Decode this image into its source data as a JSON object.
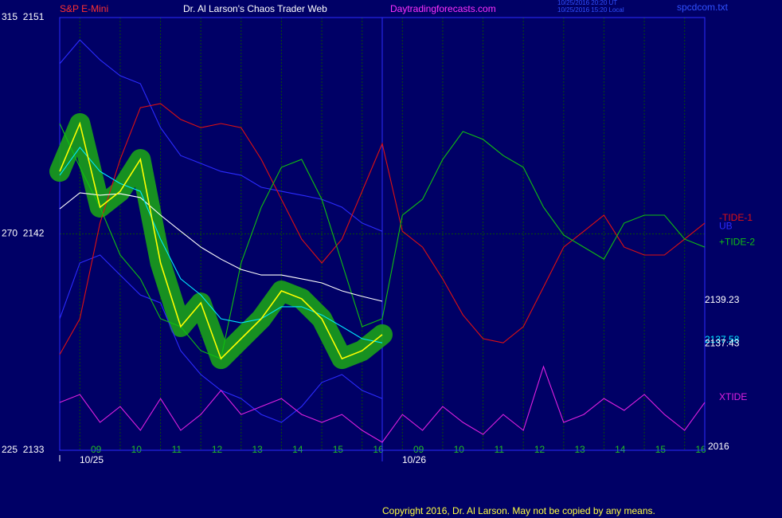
{
  "header": {
    "instrument": "S&P E-Mini",
    "title": "Dr. Al Larson's Chaos Trader Web",
    "site": "Daytradingforecasts.com",
    "time_ut": "10/25/2016 20:20 UT",
    "time_local": "10/25/2016 15:20 Local",
    "file": "spcdcom.txt"
  },
  "chart_data": {
    "type": "line",
    "x": [
      0,
      0.5,
      1,
      1.5,
      2,
      2.5,
      3,
      3.5,
      4,
      4.5,
      5,
      5.5,
      6,
      6.5,
      7,
      7.5,
      8,
      8.5,
      9,
      9.5,
      10,
      10.5,
      11,
      11.5,
      12,
      12.5,
      13,
      13.5,
      14,
      14.5,
      15,
      15.5,
      16
    ],
    "xlim": [
      0,
      16
    ],
    "xticks": [
      {
        "value": 1,
        "label": "09"
      },
      {
        "value": 2,
        "label": "10"
      },
      {
        "value": 3,
        "label": "11"
      },
      {
        "value": 4,
        "label": "12"
      },
      {
        "value": 5,
        "label": "13"
      },
      {
        "value": 6,
        "label": "14"
      },
      {
        "value": 7,
        "label": "15"
      },
      {
        "value": 8,
        "label": "16"
      },
      {
        "value": 9,
        "label": "09"
      },
      {
        "value": 10,
        "label": "10"
      },
      {
        "value": 11,
        "label": "11"
      },
      {
        "value": 12,
        "label": "12"
      },
      {
        "value": 13,
        "label": "13"
      },
      {
        "value": 14,
        "label": "14"
      },
      {
        "value": 15,
        "label": "15"
      },
      {
        "value": 16,
        "label": "16"
      }
    ],
    "date_labels": [
      {
        "value": 0,
        "label": "10/25"
      },
      {
        "value": 8,
        "label": "10/26"
      }
    ],
    "year_label": "2016",
    "ylim": [
      2133,
      2151
    ],
    "yticks": [
      {
        "value": 2133,
        "label": "225  2133"
      },
      {
        "value": 2142,
        "label": "270  2142"
      },
      {
        "value": 2151,
        "label": "315  2151"
      }
    ],
    "grid": true,
    "series": [
      {
        "name": "UB",
        "color": "#2b2bff",
        "values": [
          2149.08,
          2150.07,
          2149.24,
          2148.58,
          2148.25,
          2146.42,
          2145.26,
          2144.93,
          2144.6,
          2144.44,
          2143.94,
          2143.77,
          2143.61,
          2143.44,
          2143.11,
          2142.45,
          2142.11,
          null,
          null,
          null,
          null,
          null,
          null,
          null,
          null,
          null,
          null,
          null,
          null,
          null,
          null,
          null,
          null
        ]
      },
      {
        "color": "#2b2bff",
        "values": [
          2138.47,
          2140.79,
          2141.12,
          2140.29,
          2139.46,
          2139.13,
          2137.14,
          2136.15,
          2135.49,
          2135.15,
          2134.49,
          2134.16,
          2134.82,
          2135.82,
          2136.15,
          2135.49,
          2135.15,
          null,
          null,
          null,
          null,
          null,
          null,
          null,
          null,
          null,
          null,
          null,
          null,
          null,
          null,
          null,
          null
        ]
      },
      {
        "name": "-TIDE-1",
        "color": "#e01010",
        "values": [
          2136.98,
          2138.47,
          2142.45,
          2145.1,
          2147.25,
          2147.42,
          2146.76,
          2146.42,
          2146.59,
          2146.42,
          2145.1,
          2143.44,
          2141.78,
          2140.79,
          2141.78,
          2143.77,
          2145.76,
          2142.11,
          2141.45,
          2140.13,
          2138.63,
          2137.64,
          2137.47,
          2138.14,
          2139.79,
          2141.45,
          2142.11,
          2142.78,
          2141.45,
          2141.12,
          2141.12,
          2141.78,
          2142.45
        ]
      },
      {
        "name": "+TIDE-2",
        "color": "#10c010",
        "values": [
          2146.59,
          2144.77,
          2143.11,
          2141.12,
          2140.13,
          2138.47,
          2138.14,
          2137.14,
          2136.81,
          2140.79,
          2143.11,
          2144.77,
          2145.1,
          2143.44,
          2140.79,
          2138.14,
          2138.47,
          2142.78,
          2143.44,
          2145.1,
          2146.26,
          2145.93,
          2145.26,
          2144.77,
          2143.11,
          2141.95,
          2141.45,
          2140.95,
          2142.45,
          2142.78,
          2142.78,
          2141.78,
          2141.45
        ]
      },
      {
        "name": "XTIDE",
        "color": "#e020e0",
        "values": [
          2134.99,
          2135.32,
          2134.16,
          2134.82,
          2133.83,
          2135.15,
          2133.83,
          2134.49,
          2135.49,
          2134.49,
          2134.82,
          2135.15,
          2134.49,
          2134.16,
          2134.49,
          2133.83,
          2133.33,
          2134.49,
          2133.83,
          2134.82,
          2134.16,
          2133.66,
          2134.49,
          2133.83,
          2136.48,
          2134.16,
          2134.49,
          2135.15,
          2134.66,
          2135.32,
          2134.49,
          2133.83,
          2134.99
        ]
      },
      {
        "color": "#ffffff",
        "values": [
          2143.04,
          2143.71,
          2143.61,
          2143.67,
          2143.51,
          2142.78,
          2142.11,
          2141.45,
          2140.95,
          2140.52,
          2140.29,
          2140.29,
          2140.13,
          2139.96,
          2139.63,
          2139.4,
          2139.2,
          null,
          null,
          null,
          null,
          null,
          null,
          null,
          null,
          null,
          null,
          null,
          null,
          null,
          null,
          null,
          null
        ]
      },
      {
        "color": "#00e8ff",
        "values": [
          2144.44,
          2145.6,
          2144.6,
          2144.1,
          2143.77,
          2141.78,
          2140.13,
          2139.46,
          2138.47,
          2138.3,
          2138.47,
          2138.97,
          2138.97,
          2138.63,
          2138.14,
          2137.64,
          2137.47,
          null,
          null,
          null,
          null,
          null,
          null,
          null,
          null,
          null,
          null,
          null,
          null,
          null,
          null,
          null,
          null
        ]
      },
      {
        "color": "#ffff00",
        "halo": "#1aa01a",
        "values": [
          2144.6,
          2146.59,
          2143.11,
          2143.77,
          2145.1,
          2140.79,
          2138.14,
          2139.13,
          2136.81,
          2137.64,
          2138.47,
          2139.63,
          2139.3,
          2138.47,
          2136.81,
          2137.14,
          2137.81,
          null,
          null,
          null,
          null,
          null,
          null,
          null,
          null,
          null,
          null,
          null,
          null,
          null,
          null,
          null,
          null
        ]
      }
    ],
    "price_labels": [
      {
        "value": 2139.23,
        "color": "#ffffff"
      },
      {
        "value": 2137.58,
        "color": "#00e8ff"
      },
      {
        "value": 2137.43,
        "color": "#ffffff"
      }
    ]
  },
  "footer": "Copyright 2016, Dr. Al Larson. May not be copied by any means."
}
